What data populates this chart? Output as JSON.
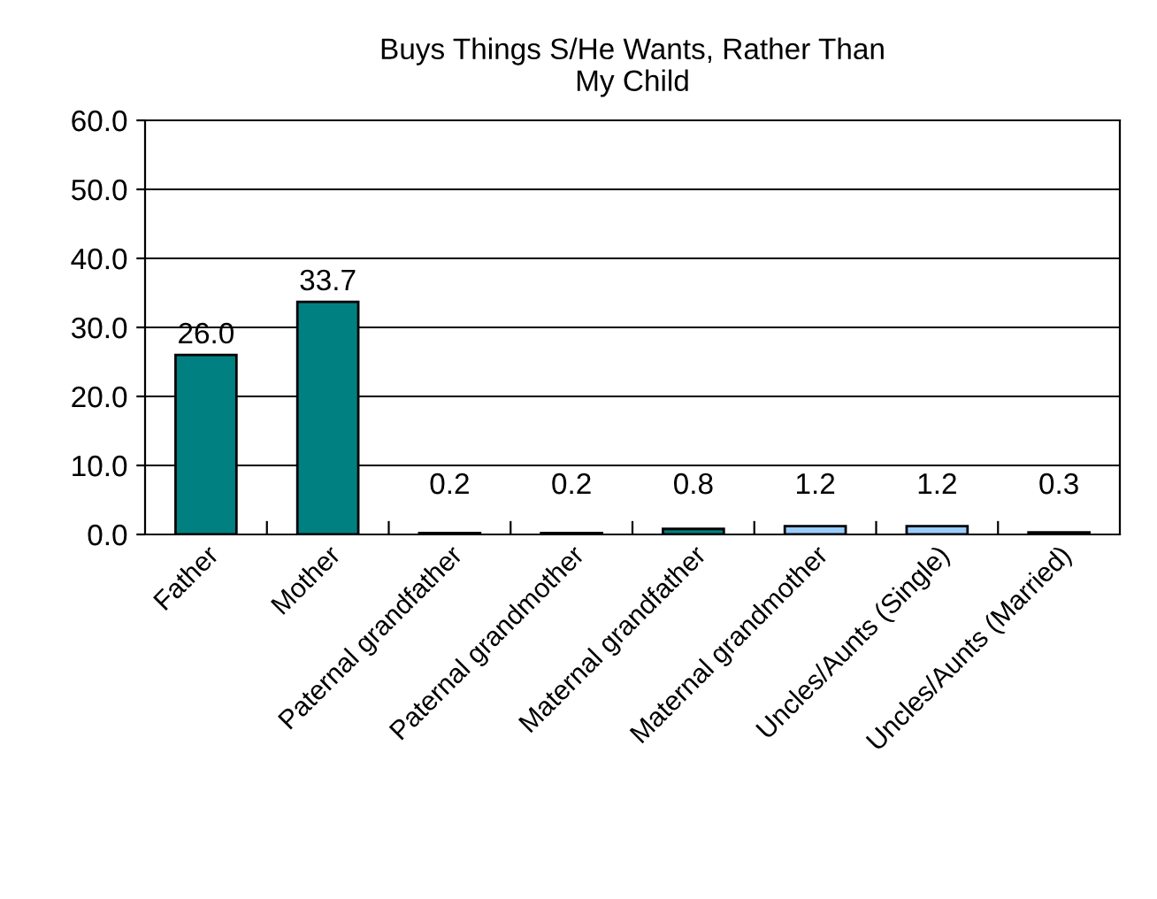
{
  "chart_data": {
    "type": "bar",
    "title": "Buys Things S/He Wants, Rather Than\nMy Child",
    "categories": [
      "Father",
      "Mother",
      "Paternal grandfather",
      "Paternal grandmother",
      "Maternal grandfather",
      "Maternal grandmother",
      "Uncles/Aunts (Single)",
      "Uncles/Aunts (Married)"
    ],
    "values": [
      26.0,
      33.7,
      0.2,
      0.2,
      0.8,
      1.2,
      1.2,
      0.3
    ],
    "colors": [
      "#008080",
      "#008080",
      "#008080",
      "#008080",
      "#008080",
      "#99ccff",
      "#99ccff",
      "#99ccff"
    ],
    "value_labels": [
      "26.0",
      "33.7",
      "0.2",
      "0.2",
      "0.8",
      "1.2",
      "1.2",
      "0.3"
    ],
    "ylim": [
      0,
      60
    ],
    "yticks": [
      {
        "value": 0,
        "label": "0.0"
      },
      {
        "value": 10,
        "label": "10.0"
      },
      {
        "value": 20,
        "label": "20.0"
      },
      {
        "value": 30,
        "label": "30.0"
      },
      {
        "value": 40,
        "label": "40.0"
      },
      {
        "value": 50,
        "label": "50.0"
      },
      {
        "value": 60,
        "label": "60.0"
      }
    ],
    "grid": "y",
    "legend": false
  }
}
